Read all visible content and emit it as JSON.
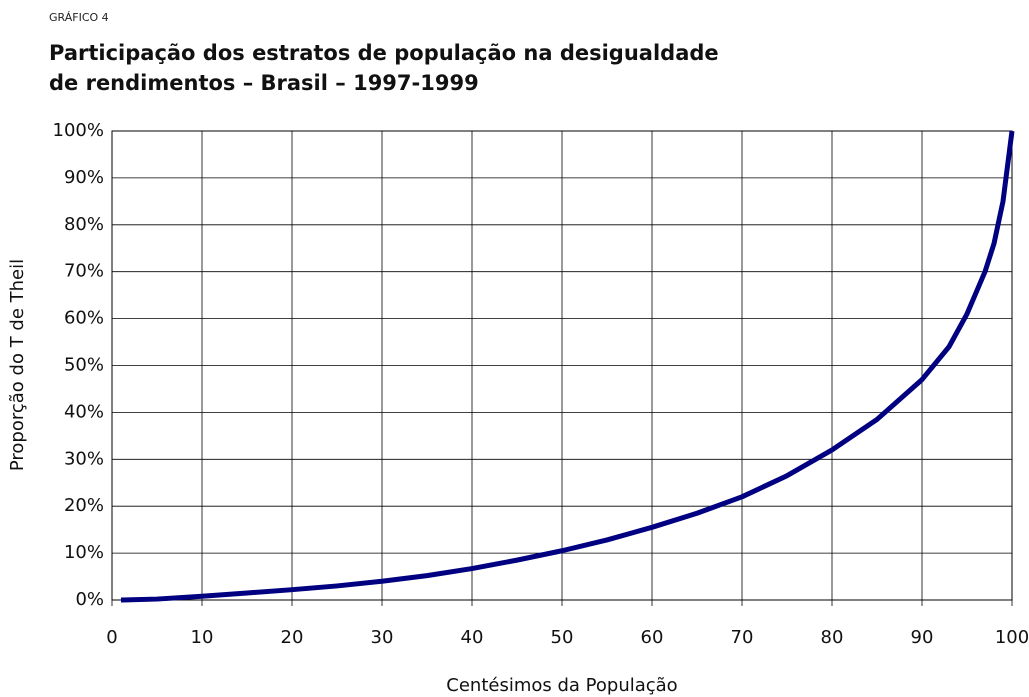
{
  "chart_data": {
    "type": "line",
    "kicker": "GRÁFICO 4",
    "title": "Participação dos estratos de população na desigualdade de rendimentos – Brasil – 1997-1999",
    "xlabel": "Centésimos da População",
    "ylabel": "Proporção do T de Theil",
    "x": [
      1,
      5,
      10,
      15,
      20,
      25,
      30,
      35,
      40,
      45,
      50,
      55,
      60,
      65,
      70,
      75,
      80,
      85,
      90,
      93,
      95,
      97,
      98,
      99,
      100
    ],
    "values": [
      0,
      0.2,
      0.8,
      1.5,
      2.2,
      3.0,
      4.0,
      5.2,
      6.7,
      8.5,
      10.5,
      12.8,
      15.5,
      18.5,
      22.0,
      26.5,
      32,
      38.5,
      47,
      54,
      61,
      70,
      76,
      85,
      100
    ],
    "color": "#000080",
    "xlim": [
      0,
      100
    ],
    "ylim": [
      0,
      100
    ],
    "xticks": [
      0,
      10,
      20,
      30,
      40,
      50,
      60,
      70,
      80,
      90,
      100
    ],
    "yticks": [
      {
        "value": 0,
        "label": "0%"
      },
      {
        "value": 10,
        "label": "10%"
      },
      {
        "value": 20,
        "label": "20%"
      },
      {
        "value": 30,
        "label": "30%"
      },
      {
        "value": 40,
        "label": "40%"
      },
      {
        "value": 50,
        "label": "50%"
      },
      {
        "value": 60,
        "label": "60%"
      },
      {
        "value": 70,
        "label": "70%"
      },
      {
        "value": 80,
        "label": "80%"
      },
      {
        "value": 90,
        "label": "90%"
      },
      {
        "value": 100,
        "label": "100%"
      }
    ],
    "grid": true
  }
}
